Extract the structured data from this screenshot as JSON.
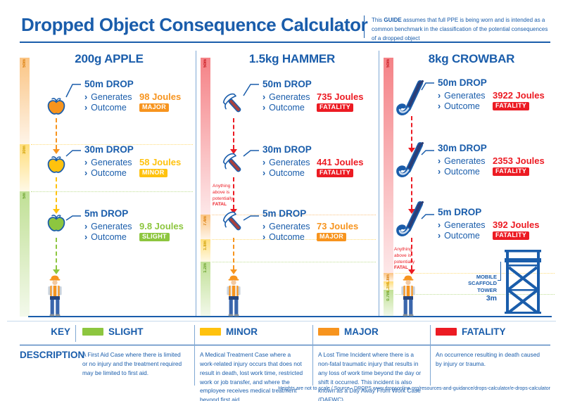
{
  "header": {
    "title": "Dropped Object Consequence Calculator",
    "note_prefix": "This ",
    "note_bold": "GUIDE",
    "note_rest": " assumes that full PPE is being worn and is intended as a common benchmark in the classification of the potential consequences of a dropped object"
  },
  "labels": {
    "generates": "Generates",
    "outcome": "Outcome",
    "bullet": "›"
  },
  "columns": [
    {
      "title": "200g APPLE",
      "object": "apple",
      "bar_zones": [
        "major",
        "minor",
        "slight"
      ],
      "bar_labels": [
        "50m",
        "30m",
        "5m"
      ],
      "arrow_zones": [
        "major",
        "minor",
        "slight"
      ],
      "entries": [
        {
          "drop": "50m DROP",
          "joules": "98 Joules",
          "outcome": "MAJOR",
          "zone": "major"
        },
        {
          "drop": "30m DROP",
          "joules": "58 Joules",
          "outcome": "MINOR",
          "zone": "minor"
        },
        {
          "drop": "5m DROP",
          "joules": "9.8 Joules",
          "outcome": "SLIGHT",
          "zone": "slight"
        }
      ]
    },
    {
      "title": "1.5kg HAMMER",
      "object": "hammer",
      "bar_zones": [
        "fatality",
        "major",
        "minor",
        "slight"
      ],
      "bar_labels": [
        "50m",
        "7.4m",
        "1.8m",
        "1.2m"
      ],
      "arrow_zones": [
        "fatality",
        "fatality",
        "major"
      ],
      "fatal_note": [
        "Anything",
        "above is",
        "potentially",
        "FATAL"
      ],
      "entries": [
        {
          "drop": "50m DROP",
          "joules": "735 Joules",
          "outcome": "FATALITY",
          "zone": "fatality"
        },
        {
          "drop": "30m DROP",
          "joules": "441 Joules",
          "outcome": "FATALITY",
          "zone": "fatality"
        },
        {
          "drop": "5m DROP",
          "joules": "73 Joules",
          "outcome": "MAJOR",
          "zone": "major"
        }
      ]
    },
    {
      "title": "8kg CROWBAR",
      "object": "crowbar",
      "bar_zones": [
        "fatality",
        "major",
        "minor",
        "slight"
      ],
      "bar_labels": [
        "50m",
        "1.8m",
        "1.2m",
        "0.7m"
      ],
      "arrow_zones": [
        "fatality",
        "fatality",
        "fatality"
      ],
      "fatal_note": [
        "Anything",
        "above is",
        "potentially",
        "FATAL"
      ],
      "scaffold": {
        "lines": [
          "MOBILE",
          "SCAFFOLD",
          "TOWER"
        ],
        "height": "3m"
      },
      "entries": [
        {
          "drop": "50m DROP",
          "joules": "3922 Joules",
          "outcome": "FATALITY",
          "zone": "fatality"
        },
        {
          "drop": "30m DROP",
          "joules": "2353 Joules",
          "outcome": "FATALITY",
          "zone": "fatality"
        },
        {
          "drop": "5m DROP",
          "joules": "392 Joules",
          "outcome": "FATALITY",
          "zone": "fatality"
        }
      ]
    }
  ],
  "key": {
    "key_label": "KEY",
    "description_label": "DESCRIPTION",
    "items": [
      {
        "label": "SLIGHT",
        "color": "#8DC63F",
        "description": "A First Aid Case where there is limited or no injury and the treatment required may be limited to first aid."
      },
      {
        "label": "MINOR",
        "color": "#FFC20E",
        "description": "A Medical Treatment Case where a work-related injury occurs that does not result in death, lost work time, restricted work or job transfer, and where the employee receives medical treatment beyond first aid."
      },
      {
        "label": "MAJOR",
        "color": "#F7941E",
        "description": "A Lost Time Incident where there is a non-fatal traumatic injury that results in any loss of work time beyond the day or shift it occurred. This incident is also known as a Day Away From Work Case (DAFWC)."
      },
      {
        "label": "FATALITY",
        "color": "#EC1B23",
        "description": "An occurrence resulting in death caused by injury or trauma."
      }
    ]
  },
  "footer": "Heights are not to scale / Source - DROPS www.dropsonline.org/resources-and-guidance/drops-calculator/e-drops-calculator",
  "colors": {
    "brand_blue": "#1A5DAB",
    "slight": "#8DC63F",
    "minor": "#FFC20E",
    "major": "#F7941E",
    "fatality": "#EC1B23"
  }
}
